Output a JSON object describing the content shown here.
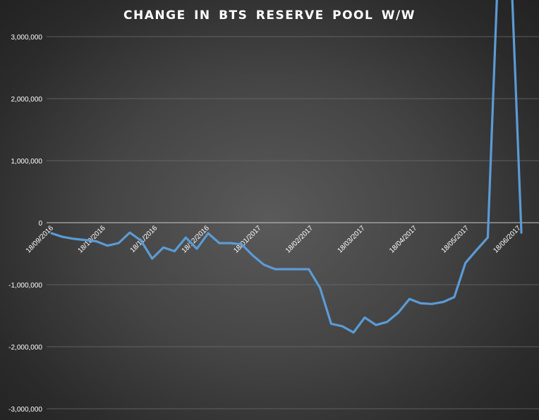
{
  "chart_data": {
    "type": "line",
    "title": "CHANGE IN BTS RESERVE POOL W/W",
    "xlabel": "",
    "ylabel": "",
    "ylim": [
      -3000000,
      3000000
    ],
    "yticks": [
      -3000000,
      -2000000,
      -1000000,
      0,
      1000000,
      2000000,
      3000000
    ],
    "ytick_labels": [
      "-3,000,000",
      "-2,000,000",
      "-1,000,000",
      "0",
      "1,000,000",
      "2,000,000",
      "3,000,000"
    ],
    "xtick_labels": [
      "18/09/2016",
      "18/10/2016",
      "18/11/2016",
      "18/12/2016",
      "18/01/2017",
      "18/02/2017",
      "18/03/2017",
      "18/04/2017",
      "18/05/2017",
      "18/06/2017"
    ],
    "grid": true,
    "line_color": "#5b9bd5",
    "series": [
      {
        "values": [
          -170000,
          -230000,
          -260000,
          -280000,
          -300000,
          -370000,
          -330000,
          -160000,
          -290000,
          -580000,
          -400000,
          -460000,
          -240000,
          -420000,
          -170000,
          -330000,
          -330000,
          -350000,
          -530000,
          -680000,
          -750000,
          -750000,
          -750000,
          -750000,
          -1050000,
          -1630000,
          -1670000,
          -1770000,
          -1530000,
          -1650000,
          -1600000,
          -1450000,
          -1230000,
          -1300000,
          -1310000,
          -1280000,
          -1200000,
          -650000,
          -440000,
          -240000,
          4500000,
          4500000,
          -160000
        ]
      }
    ]
  }
}
